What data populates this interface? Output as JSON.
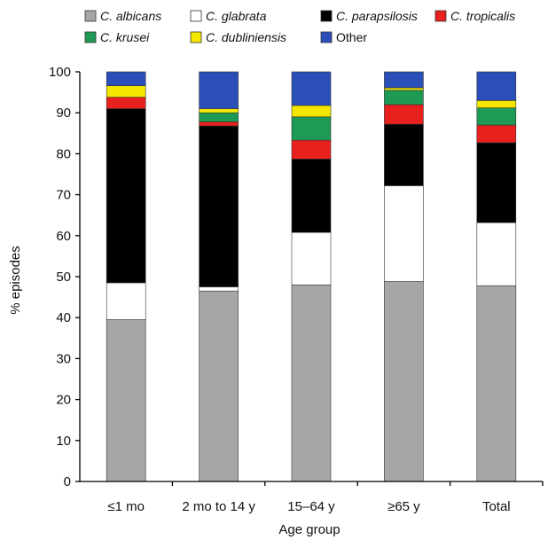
{
  "chart_data": {
    "type": "bar",
    "stacked": true,
    "categories": [
      "≤1 mo",
      "2 mo to 14 y",
      "15–64 y",
      "≥65 y",
      "Total"
    ],
    "series": [
      {
        "name": "C. albicans",
        "color": "#a6a6a6",
        "values": [
          39.5,
          46.5,
          48.0,
          48.8,
          47.8
        ]
      },
      {
        "name": "C. glabrata",
        "color": "#ffffff",
        "values": [
          9.0,
          1.0,
          12.8,
          23.4,
          15.4
        ]
      },
      {
        "name": "C. parapsilosis",
        "color": "#000000",
        "values": [
          42.5,
          39.3,
          17.9,
          15.0,
          19.5
        ]
      },
      {
        "name": "C. tropicalis",
        "color": "#e8211e",
        "values": [
          2.8,
          1.0,
          4.6,
          4.8,
          4.3
        ]
      },
      {
        "name": "C. krusei",
        "color": "#1e9a55",
        "values": [
          0.0,
          2.2,
          5.7,
          3.5,
          4.2
        ]
      },
      {
        "name": "C. dubliniensis",
        "color": "#f5e600",
        "values": [
          2.8,
          1.0,
          2.8,
          0.6,
          1.8
        ]
      },
      {
        "name": "Other",
        "color": "#2b4fb8",
        "values": [
          3.4,
          9.0,
          8.2,
          3.9,
          7.0
        ]
      }
    ],
    "xlabel": "Age group",
    "ylabel": "% episodes",
    "ylim": [
      0,
      100
    ],
    "yticks": [
      "0",
      "10",
      "20",
      "30",
      "40",
      "50",
      "60",
      "70",
      "80",
      "90",
      "100"
    ],
    "grid": false,
    "legend": {
      "position": "top",
      "rows": [
        [
          "C. albicans",
          "C. glabrata",
          "C. parapsilosis",
          "C. tropicalis"
        ],
        [
          "C. krusei",
          "C. dubliniensis",
          "Other"
        ]
      ]
    }
  }
}
